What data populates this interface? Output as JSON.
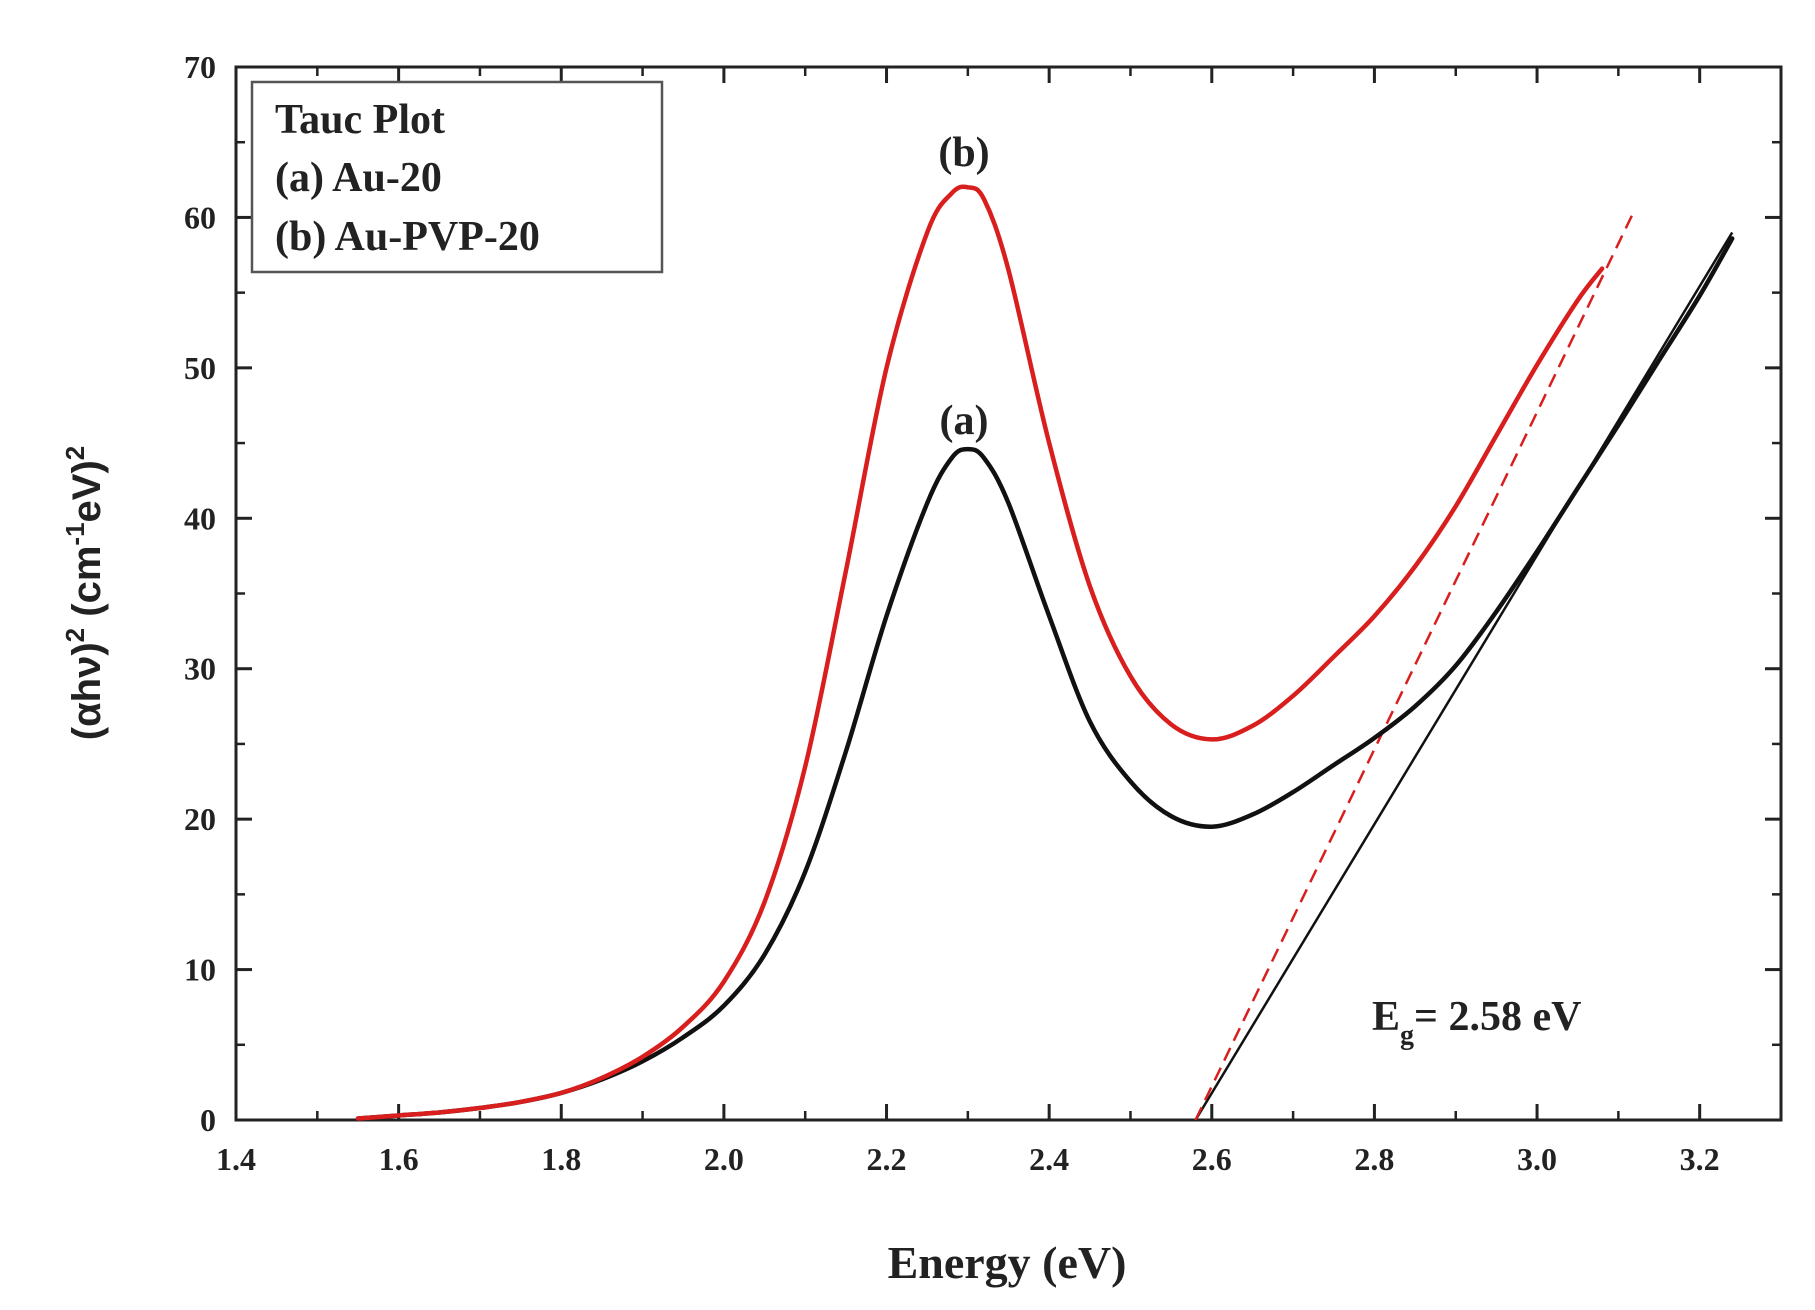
{
  "chart_data": {
    "type": "line",
    "title": "",
    "xlabel": "Energy (eV)",
    "ylabel": {
      "open": "(",
      "alpha": "α",
      "hv": "hν",
      "close": ")",
      "exp": "2",
      "unit_open": " (cm",
      "unit_exp": "-1",
      "unit_rest": "eV)",
      "unit_exp2": "2"
    },
    "xlim": [
      1.4,
      3.3
    ],
    "ylim": [
      0,
      70
    ],
    "xticks": [
      "1.4",
      "1.6",
      "1.8",
      "2.0",
      "2.2",
      "2.4",
      "2.6",
      "2.8",
      "3.0",
      "3.2"
    ],
    "yticks": [
      "0",
      "10",
      "20",
      "30",
      "40",
      "50",
      "60",
      "70"
    ],
    "series": [
      {
        "name": "(a) Au-20",
        "label": "(a)",
        "color": "#111111",
        "x": [
          1.55,
          1.6,
          1.65,
          1.7,
          1.75,
          1.8,
          1.85,
          1.9,
          1.95,
          2.0,
          2.05,
          2.1,
          2.15,
          2.2,
          2.25,
          2.28,
          2.3,
          2.32,
          2.35,
          2.4,
          2.45,
          2.5,
          2.55,
          2.6,
          2.65,
          2.7,
          2.75,
          2.8,
          2.85,
          2.9,
          2.95,
          3.0,
          3.05,
          3.1,
          3.15,
          3.2,
          3.24
        ],
        "y": [
          0.1,
          0.3,
          0.5,
          0.8,
          1.2,
          1.8,
          2.7,
          3.9,
          5.5,
          7.6,
          11,
          16.5,
          24.5,
          33.5,
          41,
          44,
          44.6,
          44,
          41,
          33.5,
          26.5,
          22.5,
          20.2,
          19.5,
          20.3,
          21.8,
          23.6,
          25.4,
          27.5,
          30.2,
          33.8,
          37.8,
          42,
          46.2,
          50.5,
          54.8,
          58.6
        ]
      },
      {
        "name": "(b) Au-PVP-20",
        "label": "(b)",
        "color": "#d91e1e",
        "x": [
          1.55,
          1.6,
          1.65,
          1.7,
          1.75,
          1.8,
          1.85,
          1.9,
          1.95,
          2.0,
          2.05,
          2.1,
          2.15,
          2.2,
          2.25,
          2.28,
          2.3,
          2.32,
          2.35,
          2.4,
          2.45,
          2.5,
          2.55,
          2.6,
          2.65,
          2.7,
          2.75,
          2.8,
          2.85,
          2.9,
          2.95,
          3.0,
          3.05,
          3.08
        ],
        "y": [
          0.1,
          0.3,
          0.5,
          0.8,
          1.2,
          1.8,
          2.8,
          4.2,
          6.2,
          9.2,
          14.5,
          23.5,
          36.5,
          50,
          59,
          61.6,
          62,
          61.2,
          56.5,
          45,
          35.5,
          29.5,
          26.3,
          25.3,
          26.2,
          28.2,
          30.8,
          33.5,
          36.8,
          40.8,
          45.5,
          50.2,
          54.5,
          56.6
        ]
      }
    ],
    "fit_lines": [
      {
        "name": "tangent-a",
        "color": "#111111",
        "style": "solid",
        "x": [
          2.58,
          3.24
        ],
        "y": [
          0,
          59
        ]
      },
      {
        "name": "tangent-b",
        "color": "#d91e1e",
        "style": "dashed",
        "x": [
          2.58,
          3.12
        ],
        "y": [
          0,
          60.5
        ]
      }
    ],
    "legend": {
      "position": "top-left",
      "title": "Tauc Plot",
      "entries": [
        "(a) Au-20",
        "(b) Au-PVP-20"
      ]
    },
    "annotations": {
      "peak_a": "(a)",
      "peak_b": "(b)",
      "eg_prefix": "E",
      "eg_sub": "g",
      "eg_value": "= 2.58 eV"
    }
  }
}
